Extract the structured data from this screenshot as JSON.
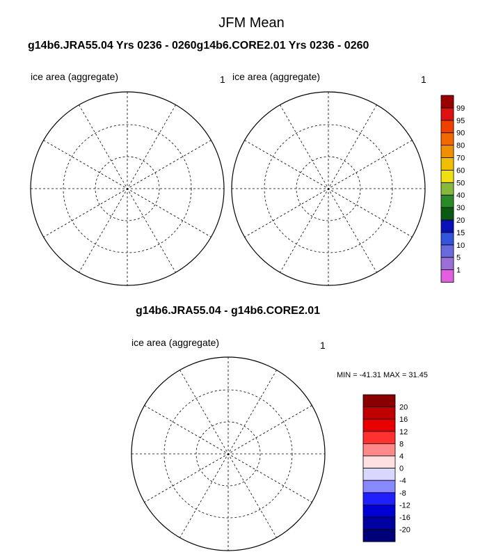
{
  "title": "JFM Mean",
  "case_titles": "g14b6.JRA55.04  Yrs 0236 - 0260g14b6.CORE2.01  Yrs 0236 - 0260",
  "diff_title": "g14b6.JRA55.04 - g14b6.CORE2.01",
  "minmax": "MIN = -41.31 MAX =  31.45",
  "chart_data": [
    {
      "type": "heatmap",
      "name": "g14b6.JRA55.04",
      "variable_label": "ice area  (aggregate)",
      "panel_number": "1",
      "colorbar": {
        "labels": [
          "1",
          "5",
          "10",
          "15",
          "20",
          "30",
          "40",
          "50",
          "60",
          "70",
          "80",
          "90",
          "95",
          "99"
        ],
        "colors": [
          "#e060e0",
          "#9a70d8",
          "#6a6ae0",
          "#3355dd",
          "#0a10b8",
          "#0a5a14",
          "#2a8a28",
          "#88b83c",
          "#f0e010",
          "#f0c000",
          "#f09000",
          "#f06a00",
          "#f04000",
          "#dd1111",
          "#990000"
        ]
      }
    },
    {
      "type": "heatmap",
      "name": "g14b6.CORE2.01",
      "variable_label": "ice area  (aggregate)",
      "panel_number": "1"
    },
    {
      "type": "heatmap",
      "name": "g14b6.JRA55.04 - g14b6.CORE2.01",
      "variable_label": "ice area  (aggregate)",
      "panel_number": "1",
      "min": -41.31,
      "max": 31.45,
      "colorbar": {
        "labels": [
          "20",
          "16",
          "12",
          "8",
          "4",
          "0",
          "-4",
          "-8",
          "-12",
          "-16",
          "-20"
        ],
        "colors": [
          "#8a0000",
          "#c00000",
          "#e80000",
          "#ff3030",
          "#ff8888",
          "#ffe0e0",
          "#d8d8ff",
          "#8888ff",
          "#2020ff",
          "#0000d0",
          "#0000a0",
          "#000078"
        ]
      }
    }
  ]
}
